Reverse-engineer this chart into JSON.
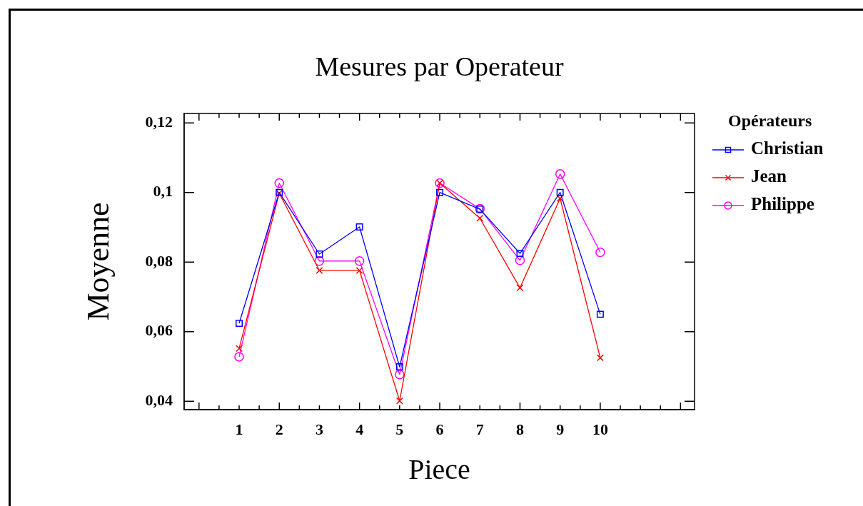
{
  "chart_data": {
    "type": "line",
    "title": "Mesures par Operateur",
    "xlabel": "Piece",
    "ylabel": "Moyenne",
    "legend_title": "Opérateurs",
    "x": [
      1,
      2,
      3,
      4,
      5,
      6,
      7,
      8,
      9,
      10
    ],
    "series": [
      {
        "name": "Christian",
        "color": "#0000ff",
        "marker": "square",
        "values": [
          0.0624,
          0.1,
          0.0823,
          0.0901,
          0.0499,
          0.1,
          0.0952,
          0.0825,
          0.1,
          0.065
        ]
      },
      {
        "name": "Jean",
        "color": "#ff0000",
        "marker": "cross",
        "values": [
          0.0552,
          0.0998,
          0.0776,
          0.0776,
          0.0401,
          0.1027,
          0.0926,
          0.0726,
          0.0983,
          0.0525
        ]
      },
      {
        "name": "Philippe",
        "color": "#ff00ff",
        "marker": "circle",
        "values": [
          0.0528,
          0.1027,
          0.0803,
          0.0803,
          0.0477,
          0.1027,
          0.0953,
          0.0805,
          0.1053,
          0.0828
        ]
      }
    ],
    "xlim": [
      -0.37,
      12.35
    ],
    "xticks": [
      {
        "value": 0,
        "label": null
      },
      {
        "value": 0.5,
        "label": null
      },
      1,
      {
        "value": 1.5,
        "label": null
      },
      2,
      {
        "value": 2.5,
        "label": null
      },
      3,
      {
        "value": 3.5,
        "label": null
      },
      4,
      {
        "value": 4.5,
        "label": null
      },
      5,
      {
        "value": 5.5,
        "label": null
      },
      6,
      {
        "value": 6.5,
        "label": null
      },
      7,
      {
        "value": 7.5,
        "label": null
      },
      8,
      {
        "value": 8.5,
        "label": null
      },
      9,
      {
        "value": 9.5,
        "label": null
      },
      10,
      {
        "value": 10.5,
        "label": null
      },
      {
        "value": 11,
        "label": null
      },
      {
        "value": 11.5,
        "label": null
      },
      {
        "value": 12,
        "label": null
      }
    ],
    "ylim": [
      0.0376,
      0.1227
    ],
    "yticks": [
      {
        "value": 0.04,
        "label": "0,04"
      },
      {
        "value": 0.06,
        "label": "0,06"
      },
      {
        "value": 0.08,
        "label": "0,08"
      },
      {
        "value": 0.1,
        "label": "0,1"
      },
      {
        "value": 0.12,
        "label": "0,12"
      }
    ],
    "grid": false,
    "legend": "top right",
    "line_style": "solid"
  }
}
